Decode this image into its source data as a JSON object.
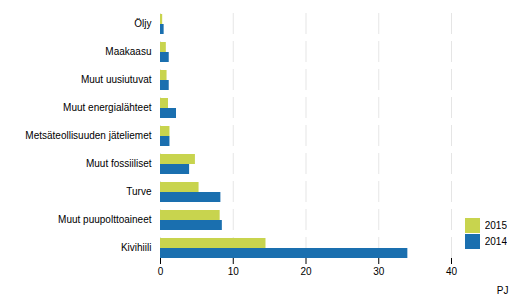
{
  "chart_data": {
    "type": "bar",
    "orientation": "horizontal",
    "categories": [
      "Öljy",
      "Maakaasu",
      "Muut uusiutuvat",
      "Muut energialähteet",
      "Metsäteollisuuden jäteliemet",
      "Muut fossiiliset",
      "Turve",
      "Muut puupolttoaineet",
      "Kivihiili"
    ],
    "series": [
      {
        "name": "2015",
        "color": "#c8d44e",
        "values": [
          0.3,
          0.8,
          0.9,
          1.1,
          1.3,
          4.8,
          5.3,
          8.2,
          14.5
        ]
      },
      {
        "name": "2014",
        "color": "#1a6faf",
        "values": [
          0.5,
          1.2,
          1.2,
          2.2,
          1.3,
          4.0,
          8.3,
          8.5,
          34.0
        ]
      }
    ],
    "xlabel": "PJ",
    "xlim": [
      0,
      40
    ],
    "xticks": [
      0,
      10,
      20,
      30,
      40
    ],
    "grid": true,
    "legend": "lower right"
  }
}
